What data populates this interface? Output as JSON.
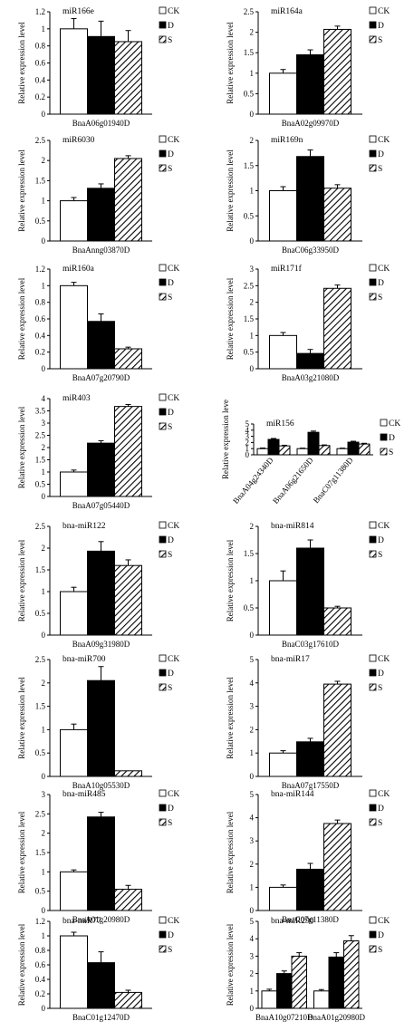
{
  "legend_labels": [
    "CK",
    "D",
    "S"
  ],
  "chart_data": [
    {
      "type": "bar",
      "title": "miR166e",
      "ylabel": "Relative expression level",
      "ylim": [
        0,
        1.2
      ],
      "ticks": [
        "0",
        "0.2",
        "0.4",
        "0.6",
        "0.8",
        "1",
        "1.2"
      ],
      "categories": [
        "BnaA06g01940D"
      ],
      "series": [
        {
          "name": "CK",
          "values": [
            1.0
          ],
          "errors": [
            0.12
          ]
        },
        {
          "name": "D",
          "values": [
            0.91
          ],
          "errors": [
            0.18
          ]
        },
        {
          "name": "S",
          "values": [
            0.85
          ],
          "errors": [
            0.13
          ]
        }
      ]
    },
    {
      "type": "bar",
      "title": "miR164a",
      "ylabel": "Relative expression level",
      "ylim": [
        0,
        2.5
      ],
      "ticks": [
        "0",
        "0.5",
        "1",
        "1.5",
        "2",
        "2.5"
      ],
      "categories": [
        "BnaA02g09970D"
      ],
      "series": [
        {
          "name": "CK",
          "values": [
            1.0
          ],
          "errors": [
            0.09
          ]
        },
        {
          "name": "D",
          "values": [
            1.45
          ],
          "errors": [
            0.12
          ]
        },
        {
          "name": "S",
          "values": [
            2.07
          ],
          "errors": [
            0.08
          ]
        }
      ]
    },
    {
      "type": "bar",
      "title": "miR6030",
      "ylabel": "Relative expression level",
      "ylim": [
        0,
        2.5
      ],
      "ticks": [
        "0",
        "0.5",
        "1",
        "1.5",
        "2",
        "2.5"
      ],
      "categories": [
        "BnaAnng03870D"
      ],
      "series": [
        {
          "name": "CK",
          "values": [
            1.0
          ],
          "errors": [
            0.08
          ]
        },
        {
          "name": "D",
          "values": [
            1.31
          ],
          "errors": [
            0.11
          ]
        },
        {
          "name": "S",
          "values": [
            2.05
          ],
          "errors": [
            0.07
          ]
        }
      ]
    },
    {
      "type": "bar",
      "title": "miR169n",
      "ylabel": "Relative expression level",
      "ylim": [
        0,
        2
      ],
      "ticks": [
        "0",
        "0.5",
        "1",
        "1.5",
        "2"
      ],
      "categories": [
        "BnaC06g33950D"
      ],
      "series": [
        {
          "name": "CK",
          "values": [
            1.0
          ],
          "errors": [
            0.08
          ]
        },
        {
          "name": "D",
          "values": [
            1.68
          ],
          "errors": [
            0.13
          ]
        },
        {
          "name": "S",
          "values": [
            1.05
          ],
          "errors": [
            0.07
          ]
        }
      ]
    },
    {
      "type": "bar",
      "title": "miR160a",
      "ylabel": "Relative expression level",
      "ylim": [
        0,
        1.2
      ],
      "ticks": [
        "0",
        "0.2",
        "0.4",
        "0.6",
        "0.8",
        "1",
        "1.2"
      ],
      "categories": [
        "BnaA07g20790D"
      ],
      "series": [
        {
          "name": "CK",
          "values": [
            1.0
          ],
          "errors": [
            0.04
          ]
        },
        {
          "name": "D",
          "values": [
            0.57
          ],
          "errors": [
            0.09
          ]
        },
        {
          "name": "S",
          "values": [
            0.24
          ],
          "errors": [
            0.02
          ]
        }
      ]
    },
    {
      "type": "bar",
      "title": "miR171f",
      "ylabel": "Relative expression level",
      "ylim": [
        0,
        3
      ],
      "ticks": [
        "0",
        "0.5",
        "1",
        "1.5",
        "2",
        "2.5",
        "3"
      ],
      "categories": [
        "BnaA03g21080D"
      ],
      "series": [
        {
          "name": "CK",
          "values": [
            1.0
          ],
          "errors": [
            0.09
          ]
        },
        {
          "name": "D",
          "values": [
            0.46
          ],
          "errors": [
            0.12
          ]
        },
        {
          "name": "S",
          "values": [
            2.42
          ],
          "errors": [
            0.1
          ]
        }
      ]
    },
    {
      "type": "bar",
      "title": "miR403",
      "ylabel": "Relative expression level",
      "ylim": [
        0,
        4
      ],
      "ticks": [
        "0",
        "0.5",
        "1",
        "1.5",
        "2",
        "2.5",
        "3",
        "3.5",
        "4"
      ],
      "categories": [
        "BnaA07g05440D"
      ],
      "series": [
        {
          "name": "CK",
          "values": [
            1.0
          ],
          "errors": [
            0.08
          ]
        },
        {
          "name": "D",
          "values": [
            2.18
          ],
          "errors": [
            0.1
          ]
        },
        {
          "name": "S",
          "values": [
            3.68
          ],
          "errors": [
            0.08
          ]
        }
      ]
    },
    {
      "type": "bar",
      "title": "miR156",
      "ylabel": "Relative expression leve",
      "ylim": [
        0,
        5
      ],
      "ticks": [
        "0",
        "1",
        "2",
        "3",
        "4",
        "5"
      ],
      "categories": [
        "BnaA04g24340D",
        "BnaA06g21650D",
        "BnaC07g11380D"
      ],
      "rotated_categories": true,
      "series": [
        {
          "name": "CK",
          "values": [
            1.0,
            1.0,
            1.0
          ],
          "errors": [
            0.1,
            0.08,
            0.08
          ]
        },
        {
          "name": "D",
          "values": [
            2.5,
            3.65,
            2.05
          ],
          "errors": [
            0.15,
            0.2,
            0.15
          ]
        },
        {
          "name": "S",
          "values": [
            1.45,
            1.5,
            1.75
          ],
          "errors": [
            0.1,
            0.1,
            0.12
          ]
        }
      ]
    },
    {
      "type": "bar",
      "title": "bna-miR122",
      "ylabel": "Relative expression level",
      "ylim": [
        0,
        2.5
      ],
      "ticks": [
        "0",
        "0.5",
        "1",
        "1.5",
        "2",
        "2.5"
      ],
      "categories": [
        "BnaA09g31980D"
      ],
      "series": [
        {
          "name": "CK",
          "values": [
            1.0
          ],
          "errors": [
            0.1
          ]
        },
        {
          "name": "D",
          "values": [
            1.93
          ],
          "errors": [
            0.22
          ]
        },
        {
          "name": "S",
          "values": [
            1.6
          ],
          "errors": [
            0.13
          ]
        }
      ]
    },
    {
      "type": "bar",
      "title": "bna-miR814",
      "ylabel": "Relative expression level",
      "ylim": [
        0,
        2
      ],
      "ticks": [
        "0",
        "0.5",
        "1",
        "1.5",
        "2"
      ],
      "categories": [
        "BnaC03g17610D"
      ],
      "series": [
        {
          "name": "CK",
          "values": [
            1.0
          ],
          "errors": [
            0.18
          ]
        },
        {
          "name": "D",
          "values": [
            1.6
          ],
          "errors": [
            0.15
          ]
        },
        {
          "name": "S",
          "values": [
            0.5
          ],
          "errors": [
            0.03
          ]
        }
      ]
    },
    {
      "type": "bar",
      "title": "bna-miR700",
      "ylabel": "Relative expression level",
      "ylim": [
        0,
        2.5
      ],
      "ticks": [
        "0",
        "0.5",
        "1",
        "1.5",
        "2",
        "2.5"
      ],
      "categories": [
        "BnaA10g05530D"
      ],
      "series": [
        {
          "name": "CK",
          "values": [
            1.0
          ],
          "errors": [
            0.12
          ]
        },
        {
          "name": "D",
          "values": [
            2.05
          ],
          "errors": [
            0.3
          ]
        },
        {
          "name": "S",
          "values": [
            0.12
          ],
          "errors": [
            0.0
          ]
        }
      ]
    },
    {
      "type": "bar",
      "title": "bna-miR17",
      "ylabel": "Relative expression level",
      "ylim": [
        0,
        5
      ],
      "ticks": [
        "0",
        "1",
        "2",
        "3",
        "4",
        "5"
      ],
      "categories": [
        "BnaA07g17550D"
      ],
      "series": [
        {
          "name": "CK",
          "values": [
            1.0
          ],
          "errors": [
            0.1
          ]
        },
        {
          "name": "D",
          "values": [
            1.48
          ],
          "errors": [
            0.15
          ]
        },
        {
          "name": "S",
          "values": [
            3.95
          ],
          "errors": [
            0.12
          ]
        }
      ]
    },
    {
      "type": "bar",
      "title": "bna-miR485",
      "ylabel": "Relative expression level",
      "ylim": [
        0,
        3
      ],
      "ticks": [
        "0",
        "0.5",
        "1",
        "1.5",
        "2",
        "2.5",
        "3"
      ],
      "categories": [
        "BnaA01g20980D"
      ],
      "series": [
        {
          "name": "CK",
          "values": [
            1.0
          ],
          "errors": [
            0.05
          ]
        },
        {
          "name": "D",
          "values": [
            2.42
          ],
          "errors": [
            0.12
          ]
        },
        {
          "name": "S",
          "values": [
            0.55
          ],
          "errors": [
            0.1
          ]
        }
      ]
    },
    {
      "type": "bar",
      "title": "bna-miR144",
      "ylabel": "Relative expression level",
      "ylim": [
        0,
        5
      ],
      "ticks": [
        "0",
        "1",
        "2",
        "3",
        "4",
        "5"
      ],
      "categories": [
        "BnaC07g11380D"
      ],
      "series": [
        {
          "name": "CK",
          "values": [
            1.0
          ],
          "errors": [
            0.1
          ]
        },
        {
          "name": "D",
          "values": [
            1.78
          ],
          "errors": [
            0.25
          ]
        },
        {
          "name": "S",
          "values": [
            3.75
          ],
          "errors": [
            0.15
          ]
        }
      ]
    },
    {
      "type": "bar",
      "title": "bna-miR77",
      "ylabel": "Relative expression level",
      "ylim": [
        0,
        1.2
      ],
      "ticks": [
        "0",
        "0.2",
        "0.4",
        "0.6",
        "0.8",
        "1",
        "1.2"
      ],
      "categories": [
        "BnaC01g12470D"
      ],
      "series": [
        {
          "name": "CK",
          "values": [
            1.0
          ],
          "errors": [
            0.05
          ]
        },
        {
          "name": "D",
          "values": [
            0.63
          ],
          "errors": [
            0.15
          ]
        },
        {
          "name": "S",
          "values": [
            0.22
          ],
          "errors": [
            0.03
          ]
        }
      ]
    },
    {
      "type": "bar",
      "title": "bna-miR290",
      "ylabel": "Relative expression level",
      "ylim": [
        0,
        5
      ],
      "ticks": [
        "0",
        "1",
        "2",
        "3",
        "4",
        "5"
      ],
      "categories": [
        "BnaA10g07210D",
        "BnaA01g20980D"
      ],
      "series": [
        {
          "name": "CK",
          "values": [
            1.0,
            1.0
          ],
          "errors": [
            0.1,
            0.08
          ]
        },
        {
          "name": "D",
          "values": [
            2.0,
            2.95
          ],
          "errors": [
            0.15,
            0.25
          ]
        },
        {
          "name": "S",
          "values": [
            3.0,
            3.88
          ],
          "errors": [
            0.2,
            0.3
          ]
        }
      ]
    }
  ]
}
